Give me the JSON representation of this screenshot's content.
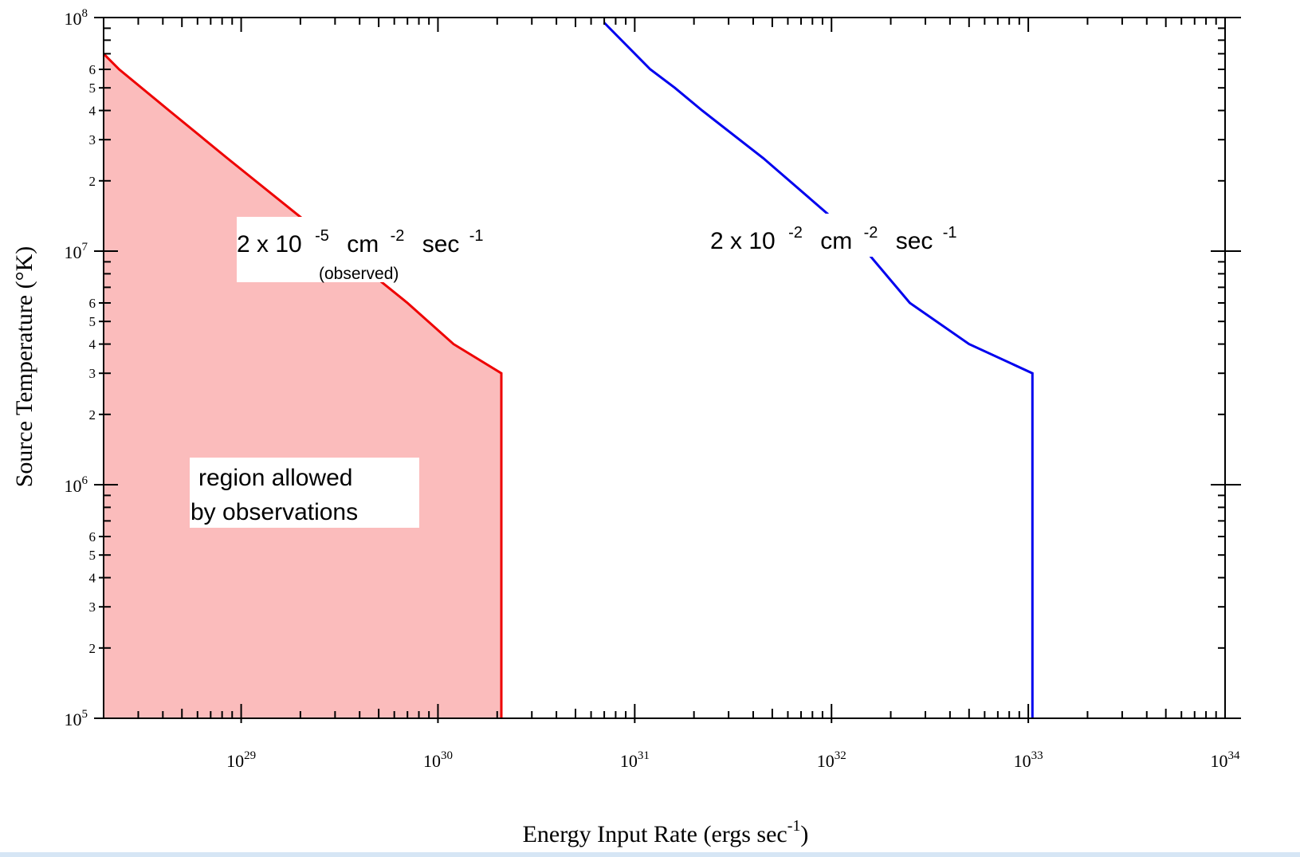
{
  "chart_data": {
    "type": "line",
    "xlabel": "Energy Input Rate (ergs sec",
    "xlabel_sup": "-1",
    "xlabel_tail": ")",
    "ylabel": "Source Temperature (°K)",
    "x_scale": "log",
    "y_scale": "log",
    "xlim": [
      2e+28,
      1e+34
    ],
    "ylim": [
      100000.0,
      100000000.0
    ],
    "x_ticks": [
      {
        "value": 1e+29,
        "base": "10",
        "exp": "29"
      },
      {
        "value": 1e+30,
        "base": "10",
        "exp": "30"
      },
      {
        "value": 1e+31,
        "base": "10",
        "exp": "31"
      },
      {
        "value": 1e+32,
        "base": "10",
        "exp": "32"
      },
      {
        "value": 1e+33,
        "base": "10",
        "exp": "33"
      },
      {
        "value": 1e+34,
        "base": "10",
        "exp": "34"
      }
    ],
    "y_ticks": [
      {
        "value": 100000.0,
        "base": "10",
        "exp": "5"
      },
      {
        "value": 1000000.0,
        "base": "10",
        "exp": "6"
      },
      {
        "value": 10000000.0,
        "base": "10",
        "exp": "7"
      },
      {
        "value": 100000000.0,
        "base": "10",
        "exp": "8"
      }
    ],
    "y_minor_labels": [
      "2",
      "3",
      "4",
      "5",
      "6"
    ],
    "grid": false,
    "series": [
      {
        "color": "#ee0000",
        "fill": "#fbbcbc",
        "x": [
          2e+28,
          2.4e+28,
          4.3e+28,
          8.5e+28,
          2e+29,
          3.3e+29,
          7e+29,
          1.2e+30,
          2.1e+30,
          2.1e+30
        ],
        "y": [
          70000000.0,
          60000000.0,
          40000000.0,
          25000000.0,
          14000000.0,
          10000000.0,
          6000000.0,
          4000000.0,
          3000000.0,
          100000.0
        ]
      },
      {
        "color": "#0000ee",
        "x": [
          7e+30,
          1.2e+31,
          1.6e+31,
          2.2e+31,
          4.5e+31,
          9.5e+31,
          1.5e+32,
          2.5e+32,
          5e+32,
          1.05e+33,
          1.05e+33
        ],
        "y": [
          95000000.0,
          60000000.0,
          50000000.0,
          40000000.0,
          25000000.0,
          14500000.0,
          10000000.0,
          6000000.0,
          4000000.0,
          3000000.0,
          100000.0
        ]
      }
    ],
    "annotations": {
      "red_label": {
        "pre": "2 x 10",
        "exp1": "-5",
        "mid": "cm",
        "exp2": "-2",
        "post": "sec",
        "exp3": "-1",
        "note": "(observed)"
      },
      "blue_label": {
        "pre": "2 x 10",
        "exp1": "-2",
        "mid": "cm",
        "exp2": "-2",
        "post": "sec",
        "exp3": "-1"
      },
      "region_label_line1": "region allowed",
      "region_label_line2": "by observations"
    }
  }
}
